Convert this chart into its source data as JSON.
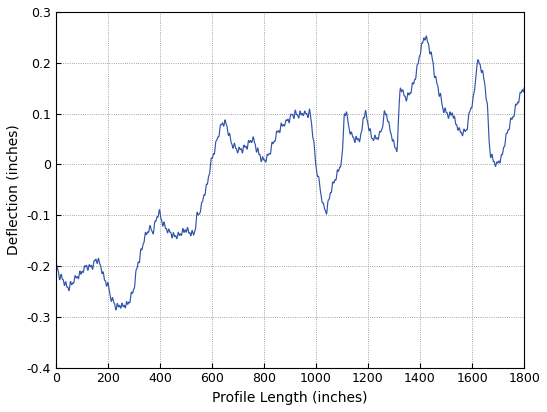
{
  "title": "",
  "xlabel": "Profile Length (inches)",
  "ylabel": "Deflection (inches)",
  "xlim": [
    0,
    1800
  ],
  "ylim": [
    -0.4,
    0.3
  ],
  "yticks": [
    -0.4,
    -0.3,
    -0.2,
    -0.1,
    0.0,
    0.1,
    0.2,
    0.3
  ],
  "xticks": [
    0,
    200,
    400,
    600,
    800,
    1000,
    1200,
    1400,
    1600,
    1800
  ],
  "line_color": "#3355aa",
  "line_width": 0.85,
  "grid_color": "#888888",
  "grid_style": ":",
  "background_color": "#ffffff",
  "figsize": [
    5.47,
    4.12
  ],
  "dpi": 100,
  "key_x": [
    0,
    10,
    30,
    50,
    80,
    100,
    120,
    140,
    155,
    160,
    170,
    185,
    200,
    220,
    240,
    260,
    280,
    290,
    300,
    310,
    315,
    320,
    330,
    345,
    360,
    370,
    380,
    395,
    400,
    405,
    415,
    430,
    450,
    470,
    490,
    510,
    530,
    545,
    550,
    555,
    565,
    580,
    600,
    620,
    640,
    655,
    660,
    665,
    680,
    700,
    720,
    740,
    755,
    760,
    765,
    780,
    800,
    820,
    830,
    835,
    840,
    860,
    880,
    900,
    920,
    940,
    960,
    970,
    975,
    980,
    990,
    1000,
    1010,
    1020,
    1030,
    1040,
    1045,
    1050,
    1060,
    1080,
    1100,
    1110,
    1115,
    1120,
    1135,
    1150,
    1170,
    1185,
    1190,
    1195,
    1205,
    1220,
    1235,
    1250,
    1265,
    1270,
    1275,
    1290,
    1310,
    1325,
    1330,
    1335,
    1350,
    1370,
    1390,
    1400,
    1410,
    1420,
    1430,
    1440,
    1450,
    1455,
    1460,
    1475,
    1490,
    1510,
    1520,
    1525,
    1530,
    1550,
    1570,
    1580,
    1590,
    1600,
    1610,
    1620,
    1625,
    1640,
    1650,
    1660,
    1665,
    1670,
    1680,
    1695,
    1710,
    1720,
    1730,
    1740,
    1760,
    1780,
    1800
  ],
  "key_y": [
    -0.2,
    -0.21,
    -0.23,
    -0.24,
    -0.22,
    -0.21,
    -0.2,
    -0.2,
    -0.19,
    -0.19,
    -0.2,
    -0.22,
    -0.24,
    -0.27,
    -0.28,
    -0.28,
    -0.27,
    -0.26,
    -0.24,
    -0.21,
    -0.2,
    -0.19,
    -0.17,
    -0.14,
    -0.13,
    -0.13,
    -0.12,
    -0.1,
    -0.1,
    -0.11,
    -0.12,
    -0.13,
    -0.14,
    -0.14,
    -0.13,
    -0.13,
    -0.14,
    -0.1,
    -0.1,
    -0.09,
    -0.07,
    -0.04,
    0.01,
    0.05,
    0.08,
    0.08,
    0.07,
    0.06,
    0.04,
    0.03,
    0.03,
    0.04,
    0.05,
    0.05,
    0.04,
    0.02,
    0.01,
    0.02,
    0.04,
    0.045,
    0.05,
    0.07,
    0.08,
    0.09,
    0.1,
    0.1,
    0.1,
    0.1,
    0.1,
    0.09,
    0.05,
    0.0,
    -0.03,
    -0.06,
    -0.08,
    -0.09,
    -0.08,
    -0.07,
    -0.05,
    -0.02,
    0.01,
    0.1,
    0.1,
    0.09,
    0.06,
    0.05,
    0.05,
    0.1,
    0.1,
    0.09,
    0.07,
    0.05,
    0.05,
    0.07,
    0.1,
    0.1,
    0.09,
    0.06,
    0.03,
    0.15,
    0.15,
    0.14,
    0.13,
    0.15,
    0.19,
    0.22,
    0.24,
    0.25,
    0.24,
    0.22,
    0.2,
    0.18,
    0.17,
    0.14,
    0.11,
    0.1,
    0.1,
    0.1,
    0.09,
    0.07,
    0.06,
    0.07,
    0.1,
    0.12,
    0.15,
    0.2,
    0.2,
    0.18,
    0.15,
    0.1,
    0.05,
    0.02,
    0.01,
    0.0,
    0.01,
    0.03,
    0.05,
    0.07,
    0.1,
    0.13,
    0.15
  ]
}
